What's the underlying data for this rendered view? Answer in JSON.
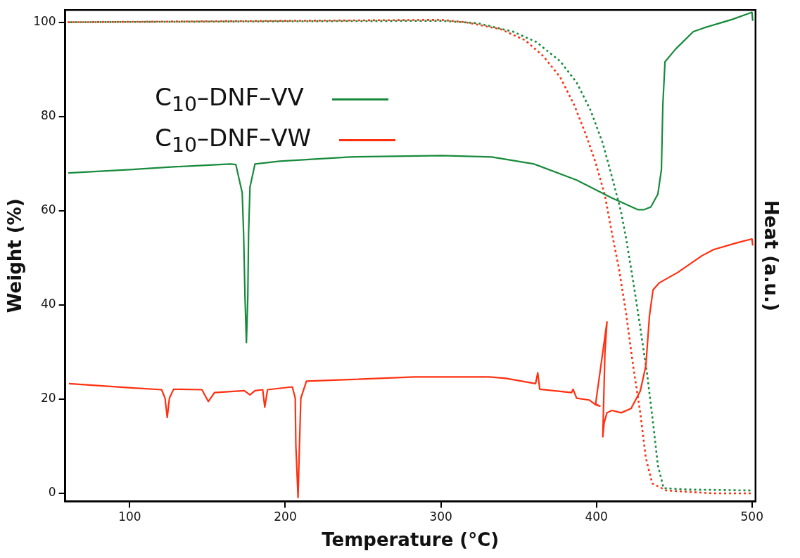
{
  "chart_data": {
    "type": "line",
    "xlabel": "Temperature (°C)",
    "ylabel": "Weight (%)",
    "y2label": "Heat (a.u.)",
    "xlim": [
      58.5,
      502.3
    ],
    "ylim": [
      -1.7,
      102.6
    ],
    "xticks": [
      100,
      200,
      300,
      400,
      500
    ],
    "yticks": [
      0,
      20,
      40,
      60,
      80,
      100
    ],
    "grid": false,
    "legend": "top left",
    "marker": "none",
    "series": [
      {
        "name": "C$_{10}$–DNF–VV",
        "color": "#178a3c",
        "line_style": "solid",
        "x": [
          60.5,
          100,
          128.2,
          164.5,
          168.2,
          172.3,
          173.2,
          174.1,
          175,
          175.9,
          176.4,
          177.3,
          180.5,
          196.4,
          241.8,
          300.9,
          332.7,
          360,
          387.3,
          410,
          426.8,
          430.5,
          435,
          439.5,
          441.8,
          442.7,
          444.1,
          450.9,
          462.3,
          469.1,
          487.3,
          500,
          500.5
        ],
        "values": [
          68.0,
          68.7,
          69.3,
          69.9,
          69.8,
          63.8,
          55.2,
          41.7,
          32.0,
          41.7,
          55.2,
          65.0,
          69.9,
          70.5,
          71.4,
          71.7,
          71.4,
          69.9,
          66.5,
          62.7,
          60.2,
          60.2,
          60.8,
          63.5,
          68.7,
          82.3,
          91.6,
          94.3,
          98.0,
          98.8,
          100.6,
          102.1,
          100.3
        ]
      },
      {
        "name": "C$_{10}$–DNF–VW",
        "color": "#ff3010",
        "line_style": "solid",
        "x": [
          60.9,
          100.9,
          120.5,
          122.7,
          124.1,
          125.5,
          128.2,
          146.4,
          150.5,
          154.5,
          173.6,
          177.3,
          180.5,
          185.5,
          186.8,
          188.6,
          204.5,
          206.4,
          206.8,
          208.2,
          209.1,
          210,
          213.6,
          237.3,
          282.7,
          331.4,
          341.8,
          360.9,
          362.3,
          363.6,
          384.1,
          385,
          387.3,
          395.5,
          399.5,
          402.3,
          399.5,
          406.8,
          405.5,
          404.1,
          405,
          406.8,
          410,
          415.9,
          422.3,
          428.2,
          431.8,
          434.1,
          436.4,
          440.5,
          452.3,
          467.7,
          475,
          490.5,
          500,
          500.5
        ],
        "values": [
          23.3,
          22.4,
          22.0,
          20.2,
          16.1,
          20.2,
          22.1,
          22.0,
          19.5,
          21.4,
          21.8,
          20.9,
          21.8,
          22.0,
          18.3,
          22.0,
          22.6,
          20.2,
          10.1,
          -0.9,
          10.1,
          20.2,
          23.8,
          24.1,
          24.7,
          24.7,
          24.4,
          23.3,
          25.6,
          22.1,
          21.4,
          22.1,
          20.2,
          19.8,
          18.8,
          18.5,
          19.0,
          36.4,
          30.0,
          12.0,
          15.0,
          17.1,
          17.6,
          17.1,
          18.0,
          21.7,
          27.1,
          37.6,
          43.2,
          44.7,
          46.9,
          50.4,
          51.7,
          53.2,
          54.0,
          52.6
        ]
      },
      {
        "color": "#178a3c",
        "line_style": "dotted",
        "x": [
          60,
          200,
          300,
          323.6,
          346.4,
          361.4,
          376.8,
          387.3,
          396.4,
          404.1,
          410,
          415.9,
          419.1,
          423.6,
          428.2,
          432.7,
          436.4,
          439.5,
          443.2,
          460,
          500
        ],
        "values": [
          100.0,
          100.2,
          100.3,
          99.8,
          98.0,
          95.8,
          91.7,
          87.2,
          81.2,
          74.3,
          67.2,
          59.7,
          54.1,
          45.1,
          35.2,
          25.1,
          15.0,
          6.0,
          1.1,
          0.8,
          0.6
        ]
      },
      {
        "color": "#ff3010",
        "line_style": "dotted",
        "x": [
          60,
          200,
          300,
          315.9,
          338.6,
          354.1,
          365.9,
          376.8,
          385.9,
          393.2,
          399.5,
          405.5,
          410,
          414.5,
          419.1,
          423.6,
          428.2,
          431.8,
          435.9,
          445,
          475,
          500
        ],
        "values": [
          100.0,
          100.3,
          100.5,
          100.0,
          98.5,
          96.2,
          92.8,
          88.3,
          82.3,
          76.2,
          70.2,
          63.2,
          55.2,
          47.7,
          38.2,
          27.1,
          17.1,
          7.5,
          2.1,
          0.6,
          0.0,
          0.0
        ]
      }
    ]
  }
}
